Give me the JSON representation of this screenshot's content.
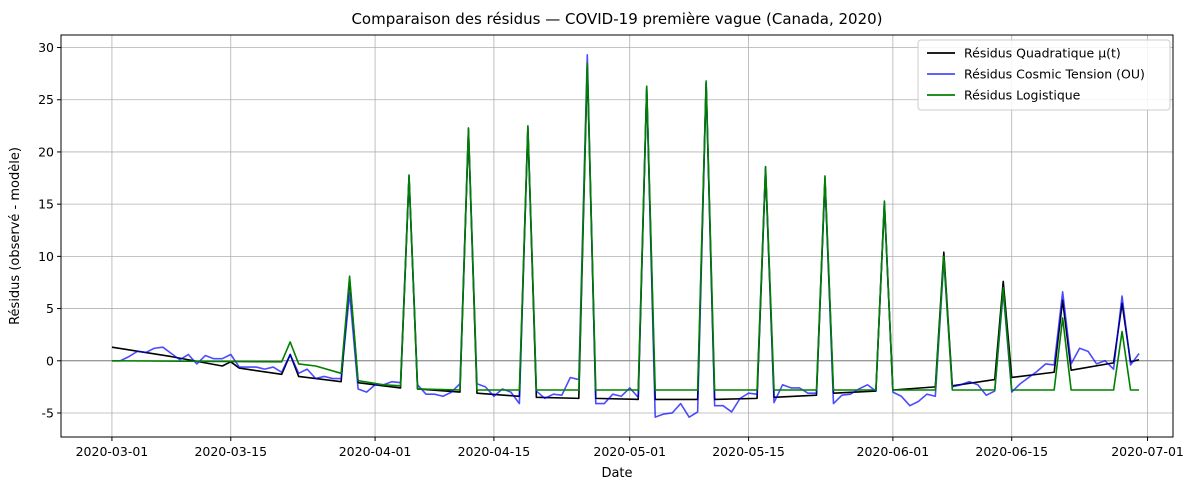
{
  "chart_data": {
    "type": "line",
    "title": "Comparaison des résidus — COVID-19 première vague (Canada, 2020)",
    "xlabel": "Date",
    "ylabel": "Résidus (observé - modèle)",
    "xlim": [
      "2020-02-24",
      "2020-07-04"
    ],
    "ylim": [
      -7.3,
      31.2
    ],
    "x_ticks": [
      "2020-03-01",
      "2020-03-15",
      "2020-04-01",
      "2020-04-15",
      "2020-05-01",
      "2020-05-15",
      "2020-06-01",
      "2020-06-15",
      "2020-07-01"
    ],
    "y_ticks": [
      -5,
      0,
      5,
      10,
      15,
      20,
      25,
      30
    ],
    "grid": true,
    "legend_position": "top-right",
    "reference_line": {
      "y": 0,
      "color": "#808080"
    },
    "series": [
      {
        "name": "Résidus Quadratique μ(t)",
        "color": "#000000",
        "points": [
          [
            "2020-03-01",
            1.3
          ],
          [
            "2020-03-08",
            0.4
          ],
          [
            "2020-03-14",
            -0.5
          ],
          [
            "2020-03-15",
            -0.1
          ],
          [
            "2020-03-16",
            -0.7
          ],
          [
            "2020-03-21",
            -1.3
          ],
          [
            "2020-03-22",
            0.6
          ],
          [
            "2020-03-23",
            -1.5
          ],
          [
            "2020-03-28",
            -2.0
          ],
          [
            "2020-03-29",
            7.8
          ],
          [
            "2020-03-30",
            -2.1
          ],
          [
            "2020-04-04",
            -2.6
          ],
          [
            "2020-04-05",
            17.5
          ],
          [
            "2020-04-06",
            -2.7
          ],
          [
            "2020-04-11",
            -3.0
          ],
          [
            "2020-04-12",
            22.0
          ],
          [
            "2020-04-13",
            -3.1
          ],
          [
            "2020-04-18",
            -3.4
          ],
          [
            "2020-04-19",
            22.2
          ],
          [
            "2020-04-20",
            -3.5
          ],
          [
            "2020-04-25",
            -3.6
          ],
          [
            "2020-04-26",
            28.2
          ],
          [
            "2020-04-27",
            -3.6
          ],
          [
            "2020-05-02",
            -3.7
          ],
          [
            "2020-05-03",
            26.0
          ],
          [
            "2020-05-04",
            -3.7
          ],
          [
            "2020-05-09",
            -3.7
          ],
          [
            "2020-05-10",
            26.5
          ],
          [
            "2020-05-11",
            -3.7
          ],
          [
            "2020-05-16",
            -3.6
          ],
          [
            "2020-05-17",
            18.3
          ],
          [
            "2020-05-18",
            -3.5
          ],
          [
            "2020-05-23",
            -3.3
          ],
          [
            "2020-05-24",
            17.3
          ],
          [
            "2020-05-25",
            -3.1
          ],
          [
            "2020-05-30",
            -2.9
          ],
          [
            "2020-05-31",
            15.0
          ],
          [
            "2020-06-01",
            -2.8
          ],
          [
            "2020-06-06",
            -2.5
          ],
          [
            "2020-06-07",
            10.4
          ],
          [
            "2020-06-08",
            -2.4
          ],
          [
            "2020-06-13",
            -1.8
          ],
          [
            "2020-06-14",
            7.6
          ],
          [
            "2020-06-15",
            -1.6
          ],
          [
            "2020-06-20",
            -1.1
          ],
          [
            "2020-06-21",
            5.8
          ],
          [
            "2020-06-22",
            -0.9
          ],
          [
            "2020-06-27",
            -0.2
          ],
          [
            "2020-06-28",
            5.5
          ],
          [
            "2020-06-29",
            -0.1
          ],
          [
            "2020-06-30",
            0.1
          ]
        ]
      },
      {
        "name": "Résidus Cosmic Tension (OU)",
        "color": "#0000ff",
        "opacity": 0.7,
        "points": [
          [
            "2020-03-01",
            0.0
          ],
          [
            "2020-03-02",
            0.0
          ],
          [
            "2020-03-03",
            0.4
          ],
          [
            "2020-03-04",
            0.9
          ],
          [
            "2020-03-05",
            0.8
          ],
          [
            "2020-03-06",
            1.2
          ],
          [
            "2020-03-07",
            1.3
          ],
          [
            "2020-03-08",
            0.7
          ],
          [
            "2020-03-09",
            0.1
          ],
          [
            "2020-03-10",
            0.6
          ],
          [
            "2020-03-11",
            -0.3
          ],
          [
            "2020-03-12",
            0.5
          ],
          [
            "2020-03-13",
            0.2
          ],
          [
            "2020-03-14",
            0.2
          ],
          [
            "2020-03-15",
            0.6
          ],
          [
            "2020-03-16",
            -0.6
          ],
          [
            "2020-03-17",
            -0.6
          ],
          [
            "2020-03-18",
            -0.6
          ],
          [
            "2020-03-19",
            -0.8
          ],
          [
            "2020-03-20",
            -0.6
          ],
          [
            "2020-03-21",
            -1.1
          ],
          [
            "2020-03-22",
            0.6
          ],
          [
            "2020-03-23",
            -1.2
          ],
          [
            "2020-03-24",
            -0.8
          ],
          [
            "2020-03-25",
            -1.7
          ],
          [
            "2020-03-26",
            -1.5
          ],
          [
            "2020-03-27",
            -1.7
          ],
          [
            "2020-03-28",
            -1.7
          ],
          [
            "2020-03-29",
            6.5
          ],
          [
            "2020-03-30",
            -2.7
          ],
          [
            "2020-03-31",
            -3.0
          ],
          [
            "2020-04-01",
            -2.3
          ],
          [
            "2020-04-02",
            -2.3
          ],
          [
            "2020-04-03",
            -2.0
          ],
          [
            "2020-04-04",
            -2.1
          ],
          [
            "2020-04-05",
            17.7
          ],
          [
            "2020-04-06",
            -2.3
          ],
          [
            "2020-04-07",
            -3.2
          ],
          [
            "2020-04-08",
            -3.2
          ],
          [
            "2020-04-09",
            -3.4
          ],
          [
            "2020-04-10",
            -3.0
          ],
          [
            "2020-04-11",
            -2.2
          ],
          [
            "2020-04-12",
            22.2
          ],
          [
            "2020-04-13",
            -2.2
          ],
          [
            "2020-04-14",
            -2.5
          ],
          [
            "2020-04-15",
            -3.4
          ],
          [
            "2020-04-16",
            -2.7
          ],
          [
            "2020-04-17",
            -3.0
          ],
          [
            "2020-04-18",
            -4.1
          ],
          [
            "2020-04-19",
            22.4
          ],
          [
            "2020-04-20",
            -2.9
          ],
          [
            "2020-04-21",
            -3.6
          ],
          [
            "2020-04-22",
            -3.2
          ],
          [
            "2020-04-23",
            -3.3
          ],
          [
            "2020-04-24",
            -1.6
          ],
          [
            "2020-04-25",
            -1.8
          ],
          [
            "2020-04-26",
            29.3
          ],
          [
            "2020-04-27",
            -4.1
          ],
          [
            "2020-04-28",
            -4.1
          ],
          [
            "2020-04-29",
            -3.2
          ],
          [
            "2020-04-30",
            -3.4
          ],
          [
            "2020-05-01",
            -2.6
          ],
          [
            "2020-05-02",
            -3.5
          ],
          [
            "2020-05-03",
            26.2
          ],
          [
            "2020-05-04",
            -5.4
          ],
          [
            "2020-05-05",
            -5.1
          ],
          [
            "2020-05-06",
            -5.0
          ],
          [
            "2020-05-07",
            -4.1
          ],
          [
            "2020-05-08",
            -5.4
          ],
          [
            "2020-05-09",
            -4.9
          ],
          [
            "2020-05-10",
            26.6
          ],
          [
            "2020-05-11",
            -4.3
          ],
          [
            "2020-05-12",
            -4.3
          ],
          [
            "2020-05-13",
            -4.9
          ],
          [
            "2020-05-14",
            -3.6
          ],
          [
            "2020-05-15",
            -3.1
          ],
          [
            "2020-05-16",
            -3.2
          ],
          [
            "2020-05-17",
            18.5
          ],
          [
            "2020-05-18",
            -4.0
          ],
          [
            "2020-05-19",
            -2.3
          ],
          [
            "2020-05-20",
            -2.6
          ],
          [
            "2020-05-21",
            -2.6
          ],
          [
            "2020-05-22",
            -3.1
          ],
          [
            "2020-05-23",
            -3.1
          ],
          [
            "2020-05-24",
            17.5
          ],
          [
            "2020-05-25",
            -4.1
          ],
          [
            "2020-05-26",
            -3.3
          ],
          [
            "2020-05-27",
            -3.2
          ],
          [
            "2020-05-28",
            -2.7
          ],
          [
            "2020-05-29",
            -2.3
          ],
          [
            "2020-05-30",
            -2.9
          ],
          [
            "2020-05-31",
            15.2
          ],
          [
            "2020-06-01",
            -3.0
          ],
          [
            "2020-06-02",
            -3.4
          ],
          [
            "2020-06-03",
            -4.3
          ],
          [
            "2020-06-04",
            -3.9
          ],
          [
            "2020-06-05",
            -3.2
          ],
          [
            "2020-06-06",
            -3.4
          ],
          [
            "2020-06-07",
            9.6
          ],
          [
            "2020-06-08",
            -2.5
          ],
          [
            "2020-06-09",
            -2.3
          ],
          [
            "2020-06-10",
            -2.0
          ],
          [
            "2020-06-11",
            -2.3
          ],
          [
            "2020-06-12",
            -3.3
          ],
          [
            "2020-06-13",
            -2.9
          ],
          [
            "2020-06-14",
            6.6
          ],
          [
            "2020-06-15",
            -3.0
          ],
          [
            "2020-06-16",
            -2.2
          ],
          [
            "2020-06-17",
            -1.6
          ],
          [
            "2020-06-18",
            -1.0
          ],
          [
            "2020-06-19",
            -0.3
          ],
          [
            "2020-06-20",
            -0.4
          ],
          [
            "2020-06-21",
            6.6
          ],
          [
            "2020-06-22",
            -0.3
          ],
          [
            "2020-06-23",
            1.2
          ],
          [
            "2020-06-24",
            0.9
          ],
          [
            "2020-06-25",
            -0.3
          ],
          [
            "2020-06-26",
            0.0
          ],
          [
            "2020-06-27",
            -0.8
          ],
          [
            "2020-06-28",
            6.2
          ],
          [
            "2020-06-29",
            -0.4
          ],
          [
            "2020-06-30",
            0.7
          ]
        ]
      },
      {
        "name": "Résidus Logistique",
        "color": "#008000",
        "points": [
          [
            "2020-03-01",
            0.0
          ],
          [
            "2020-03-21",
            -0.1
          ],
          [
            "2020-03-22",
            1.8
          ],
          [
            "2020-03-23",
            -0.3
          ],
          [
            "2020-03-25",
            -0.5
          ],
          [
            "2020-03-28",
            -1.2
          ],
          [
            "2020-03-29",
            8.1
          ],
          [
            "2020-03-30",
            -1.9
          ],
          [
            "2020-04-02",
            -2.3
          ],
          [
            "2020-04-04",
            -2.4
          ],
          [
            "2020-04-05",
            17.8
          ],
          [
            "2020-04-06",
            -2.7
          ],
          [
            "2020-04-11",
            -2.8
          ],
          [
            "2020-04-12",
            22.3
          ],
          [
            "2020-04-13",
            -2.8
          ],
          [
            "2020-04-18",
            -2.8
          ],
          [
            "2020-04-19",
            22.5
          ],
          [
            "2020-04-20",
            -2.8
          ],
          [
            "2020-04-25",
            -2.8
          ],
          [
            "2020-04-26",
            28.5
          ],
          [
            "2020-04-27",
            -2.8
          ],
          [
            "2020-05-02",
            -2.8
          ],
          [
            "2020-05-03",
            26.3
          ],
          [
            "2020-05-04",
            -2.8
          ],
          [
            "2020-05-09",
            -2.8
          ],
          [
            "2020-05-10",
            26.8
          ],
          [
            "2020-05-11",
            -2.8
          ],
          [
            "2020-05-16",
            -2.8
          ],
          [
            "2020-05-17",
            18.6
          ],
          [
            "2020-05-18",
            -2.8
          ],
          [
            "2020-05-23",
            -2.8
          ],
          [
            "2020-05-24",
            17.7
          ],
          [
            "2020-05-25",
            -2.8
          ],
          [
            "2020-05-30",
            -2.8
          ],
          [
            "2020-05-31",
            15.3
          ],
          [
            "2020-06-01",
            -2.8
          ],
          [
            "2020-06-06",
            -2.8
          ],
          [
            "2020-06-07",
            10.0
          ],
          [
            "2020-06-08",
            -2.8
          ],
          [
            "2020-06-13",
            -2.8
          ],
          [
            "2020-06-14",
            7.0
          ],
          [
            "2020-06-15",
            -2.8
          ],
          [
            "2020-06-20",
            -2.8
          ],
          [
            "2020-06-21",
            4.1
          ],
          [
            "2020-06-22",
            -2.8
          ],
          [
            "2020-06-27",
            -2.8
          ],
          [
            "2020-06-28",
            2.8
          ],
          [
            "2020-06-29",
            -2.8
          ],
          [
            "2020-06-30",
            -2.8
          ]
        ]
      }
    ]
  }
}
